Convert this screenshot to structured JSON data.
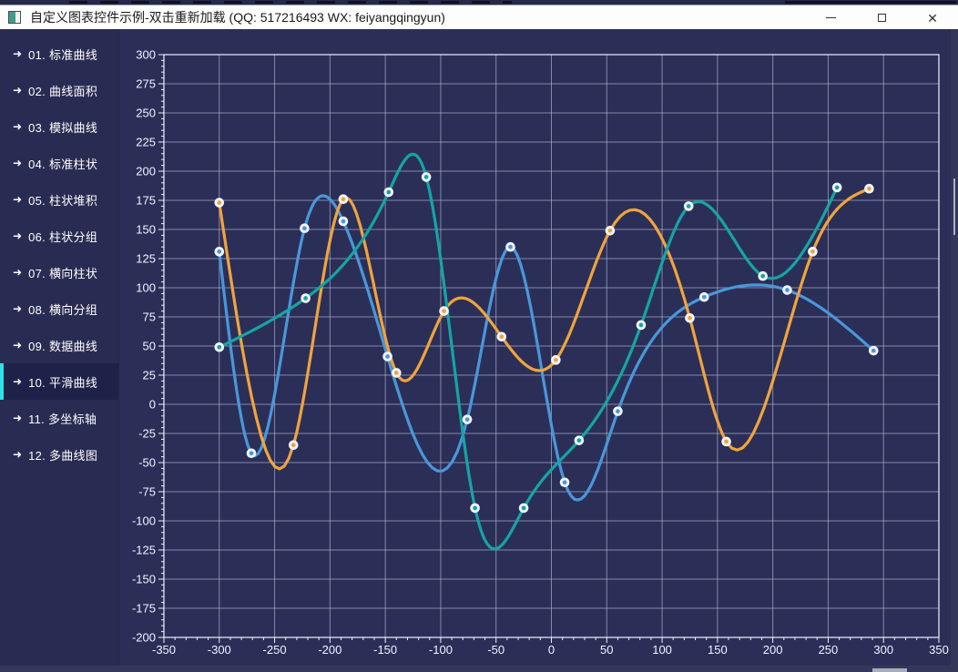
{
  "window": {
    "title": "自定义图表控件示例-双击重新加载 (QQ: 517216493 WX: feiyangqingyun)",
    "controls": {
      "minimize": "minimize",
      "maximize": "maximize",
      "close": "✕"
    }
  },
  "sidebar": {
    "arrow": "➜",
    "items": [
      {
        "label": "01. 标准曲线",
        "active": false
      },
      {
        "label": "02. 曲线面积",
        "active": false
      },
      {
        "label": "03. 模拟曲线",
        "active": false
      },
      {
        "label": "04. 标准柱状",
        "active": false
      },
      {
        "label": "05. 柱状堆积",
        "active": false
      },
      {
        "label": "06. 柱状分组",
        "active": false
      },
      {
        "label": "07. 横向柱状",
        "active": false
      },
      {
        "label": "08. 横向分组",
        "active": false
      },
      {
        "label": "09. 数据曲线",
        "active": false
      },
      {
        "label": "10. 平滑曲线",
        "active": true
      },
      {
        "label": "11. 多坐标轴",
        "active": false
      },
      {
        "label": "12. 多曲线图",
        "active": false
      }
    ]
  },
  "chart_data": {
    "type": "line",
    "smooth": true,
    "title": "",
    "xlabel": "",
    "ylabel": "",
    "x_range": [
      -350,
      350
    ],
    "y_range": [
      -200,
      300
    ],
    "x_tick_step": 50,
    "y_tick_step": 25,
    "grid": true,
    "legend": false,
    "series": [
      {
        "name": "blue",
        "color": "#4a97d9",
        "points": [
          [
            -300,
            131
          ],
          [
            -271,
            -42
          ],
          [
            -223,
            151
          ],
          [
            -188,
            157
          ],
          [
            -148,
            41
          ],
          [
            -76,
            -13
          ],
          [
            -37,
            135
          ],
          [
            12,
            -67
          ],
          [
            60,
            -6
          ],
          [
            138,
            92
          ],
          [
            213,
            98
          ],
          [
            291,
            46
          ]
        ]
      },
      {
        "name": "orange",
        "color": "#f0a43c",
        "points": [
          [
            -300,
            173
          ],
          [
            -233,
            -35
          ],
          [
            -188,
            176
          ],
          [
            -140,
            27
          ],
          [
            -97,
            80
          ],
          [
            -45,
            58
          ],
          [
            4,
            38
          ],
          [
            53,
            149
          ],
          [
            125,
            74
          ],
          [
            158,
            -32
          ],
          [
            236,
            131
          ],
          [
            287,
            185
          ]
        ]
      },
      {
        "name": "teal",
        "color": "#16a4a4",
        "points": [
          [
            -300,
            49
          ],
          [
            -222,
            91
          ],
          [
            -147,
            182
          ],
          [
            -113,
            195
          ],
          [
            -69,
            -89
          ],
          [
            -25,
            -89
          ],
          [
            25,
            -31
          ],
          [
            81,
            68
          ],
          [
            124,
            170
          ],
          [
            191,
            110
          ],
          [
            258,
            186
          ]
        ]
      }
    ],
    "marker": {
      "ring_color": "#f2f5fb"
    }
  },
  "colors": {
    "titlebar_bg": "#fdfdfd",
    "titlebar_text": "#1a1a1a",
    "sidebar_bg": "#292c52",
    "sidebar_active_bg": "#1f2248",
    "accent": "#2ee3e6",
    "chart_bg": "#2b2f58",
    "grid": "#c9cfe9",
    "axis": "#eef2fc",
    "label": "#f2f4fd"
  }
}
